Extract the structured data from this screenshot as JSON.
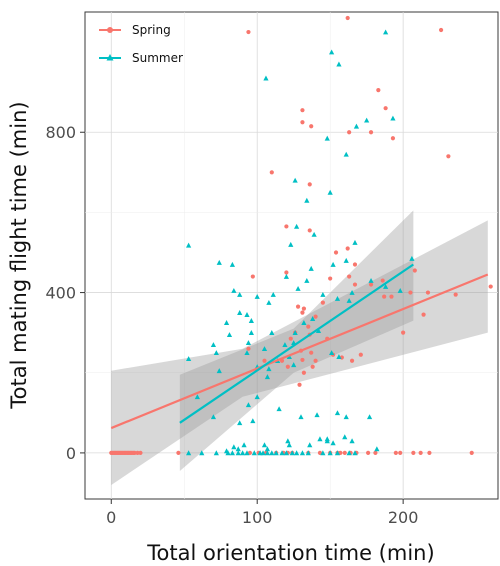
{
  "chart_data": {
    "type": "scatter",
    "xlabel": "Total orientation time (min)",
    "ylabel": "Total mating flight time (min)",
    "xlim": [
      -18,
      265
    ],
    "ylim": [
      -115,
      1100
    ],
    "x_ticks": [
      0,
      100,
      200
    ],
    "y_ticks": [
      0,
      400,
      800
    ],
    "grid": true,
    "legend_position": "top-left",
    "series": [
      {
        "name": "Spring",
        "marker": "circle",
        "color": "#F8766D",
        "points": [
          [
            0,
            0
          ],
          [
            1,
            0
          ],
          [
            2,
            0
          ],
          [
            3,
            0
          ],
          [
            4,
            0
          ],
          [
            5,
            0
          ],
          [
            6,
            0
          ],
          [
            7,
            0
          ],
          [
            8,
            0
          ],
          [
            9,
            0
          ],
          [
            10,
            0
          ],
          [
            11,
            0
          ],
          [
            12,
            0
          ],
          [
            13,
            0
          ],
          [
            14,
            0
          ],
          [
            15,
            0
          ],
          [
            16,
            0
          ],
          [
            18,
            0
          ],
          [
            20,
            0
          ],
          [
            46,
            0
          ],
          [
            95,
            0
          ],
          [
            101,
            0
          ],
          [
            106,
            0
          ],
          [
            113,
            0
          ],
          [
            118,
            0
          ],
          [
            121,
            0
          ],
          [
            124,
            0
          ],
          [
            135,
            0
          ],
          [
            143,
            0
          ],
          [
            150,
            0
          ],
          [
            155,
            0
          ],
          [
            157,
            0
          ],
          [
            160,
            0
          ],
          [
            164,
            0
          ],
          [
            168,
            0
          ],
          [
            176,
            0
          ],
          [
            181,
            0
          ],
          [
            195,
            0
          ],
          [
            198,
            0
          ],
          [
            207,
            0
          ],
          [
            212,
            0
          ],
          [
            218,
            0
          ],
          [
            247,
            0
          ],
          [
            94,
            1050
          ],
          [
            162,
            1085
          ],
          [
            226,
            1055
          ],
          [
            183,
            905
          ],
          [
            188,
            860
          ],
          [
            131,
            855
          ],
          [
            131,
            825
          ],
          [
            137,
            815
          ],
          [
            163,
            800
          ],
          [
            178,
            800
          ],
          [
            193,
            785
          ],
          [
            231,
            740
          ],
          [
            110,
            700
          ],
          [
            136,
            670
          ],
          [
            120,
            565
          ],
          [
            136,
            555
          ],
          [
            162,
            510
          ],
          [
            154,
            500
          ],
          [
            167,
            470
          ],
          [
            163,
            440
          ],
          [
            97,
            440
          ],
          [
            120,
            450
          ],
          [
            150,
            435
          ],
          [
            167,
            420
          ],
          [
            178,
            420
          ],
          [
            186,
            430
          ],
          [
            208,
            455
          ],
          [
            217,
            400
          ],
          [
            236,
            395
          ],
          [
            260,
            415
          ],
          [
            205,
            400
          ],
          [
            214,
            345
          ],
          [
            192,
            390
          ],
          [
            187,
            390
          ],
          [
            200,
            300
          ],
          [
            145,
            375
          ],
          [
            132,
            360
          ],
          [
            128,
            365
          ],
          [
            131,
            350
          ],
          [
            140,
            340
          ],
          [
            135,
            315
          ],
          [
            136,
            295
          ],
          [
            126,
            300
          ],
          [
            123,
            285
          ],
          [
            130,
            255
          ],
          [
            131,
            232
          ],
          [
            121,
            215
          ],
          [
            138,
            215
          ],
          [
            148,
            285
          ],
          [
            152,
            245
          ],
          [
            158,
            238
          ],
          [
            165,
            230
          ],
          [
            171,
            245
          ],
          [
            140,
            230
          ],
          [
            137,
            250
          ],
          [
            132,
            200
          ],
          [
            129,
            170
          ],
          [
            105,
            230
          ],
          [
            117,
            230
          ],
          [
            94,
            260
          ]
        ]
      },
      {
        "name": "Summer",
        "marker": "triangle",
        "color": "#00BFC4",
        "points": [
          [
            53,
            0
          ],
          [
            62,
            0
          ],
          [
            72,
            0
          ],
          [
            80,
            0
          ],
          [
            83,
            0
          ],
          [
            87,
            0
          ],
          [
            90,
            0
          ],
          [
            93,
            0
          ],
          [
            98,
            0
          ],
          [
            102,
            0
          ],
          [
            104,
            0
          ],
          [
            107,
            0
          ],
          [
            110,
            0
          ],
          [
            113,
            0
          ],
          [
            117,
            0
          ],
          [
            120,
            0
          ],
          [
            124,
            0
          ],
          [
            127,
            0
          ],
          [
            131,
            0
          ],
          [
            135,
            0
          ],
          [
            145,
            0
          ],
          [
            150,
            0
          ],
          [
            155,
            0
          ],
          [
            163,
            0
          ],
          [
            167,
            0
          ],
          [
            87,
            10
          ],
          [
            91,
            20
          ],
          [
            84,
            15
          ],
          [
            79,
            5
          ],
          [
            105,
            20
          ],
          [
            107,
            10
          ],
          [
            121,
            30
          ],
          [
            136,
            20
          ],
          [
            143,
            35
          ],
          [
            148,
            35
          ],
          [
            152,
            25
          ],
          [
            160,
            40
          ],
          [
            165,
            30
          ],
          [
            182,
            10
          ],
          [
            122,
            20
          ],
          [
            148,
            30
          ],
          [
            130,
            90
          ],
          [
            141,
            95
          ],
          [
            155,
            100
          ],
          [
            161,
            90
          ],
          [
            177,
            90
          ],
          [
            97,
            80
          ],
          [
            88,
            75
          ],
          [
            100,
            140
          ],
          [
            107,
            190
          ],
          [
            115,
            110
          ],
          [
            70,
            90
          ],
          [
            59,
            140
          ],
          [
            94,
            120
          ],
          [
            188,
            1050
          ],
          [
            151,
            1000
          ],
          [
            156,
            970
          ],
          [
            106,
            935
          ],
          [
            193,
            835
          ],
          [
            175,
            830
          ],
          [
            168,
            815
          ],
          [
            148,
            785
          ],
          [
            161,
            745
          ],
          [
            126,
            680
          ],
          [
            150,
            650
          ],
          [
            134,
            630
          ],
          [
            53,
            518
          ],
          [
            127,
            565
          ],
          [
            139,
            545
          ],
          [
            123,
            520
          ],
          [
            167,
            525
          ],
          [
            206,
            485
          ],
          [
            74,
            475
          ],
          [
            83,
            470
          ],
          [
            137,
            460
          ],
          [
            152,
            470
          ],
          [
            161,
            480
          ],
          [
            120,
            440
          ],
          [
            134,
            430
          ],
          [
            178,
            430
          ],
          [
            188,
            415
          ],
          [
            84,
            405
          ],
          [
            88,
            395
          ],
          [
            145,
            395
          ],
          [
            155,
            385
          ],
          [
            165,
            400
          ],
          [
            198,
            405
          ],
          [
            100,
            390
          ],
          [
            111,
            395
          ],
          [
            108,
            375
          ],
          [
            128,
            410
          ],
          [
            163,
            380
          ],
          [
            88,
            350
          ],
          [
            93,
            345
          ],
          [
            96,
            330
          ],
          [
            79,
            325
          ],
          [
            96,
            300
          ],
          [
            81,
            295
          ],
          [
            110,
            300
          ],
          [
            126,
            300
          ],
          [
            132,
            325
          ],
          [
            138,
            335
          ],
          [
            142,
            305
          ],
          [
            122,
            240
          ],
          [
            125,
            220
          ],
          [
            119,
            270
          ],
          [
            125,
            275
          ],
          [
            156,
            240
          ],
          [
            151,
            250
          ],
          [
            93,
            250
          ],
          [
            94,
            275
          ],
          [
            70,
            270
          ],
          [
            72,
            250
          ],
          [
            105,
            260
          ],
          [
            114,
            230
          ],
          [
            53,
            235
          ],
          [
            74,
            205
          ],
          [
            100,
            215
          ],
          [
            108,
            210
          ]
        ]
      }
    ],
    "fits": [
      {
        "name": "Spring",
        "x": [
          0,
          258
        ],
        "y": [
          62,
          445
        ],
        "ci": [
          [
            0,
            -80,
            205
          ],
          [
            90,
            140,
            260
          ],
          [
            258,
            300,
            580
          ]
        ]
      },
      {
        "name": "Summer",
        "x": [
          47,
          207
        ],
        "y": [
          75,
          470
        ],
        "ci": [
          [
            47,
            -45,
            195
          ],
          [
            125,
            200,
            310
          ],
          [
            207,
            330,
            605
          ]
        ]
      }
    ]
  }
}
